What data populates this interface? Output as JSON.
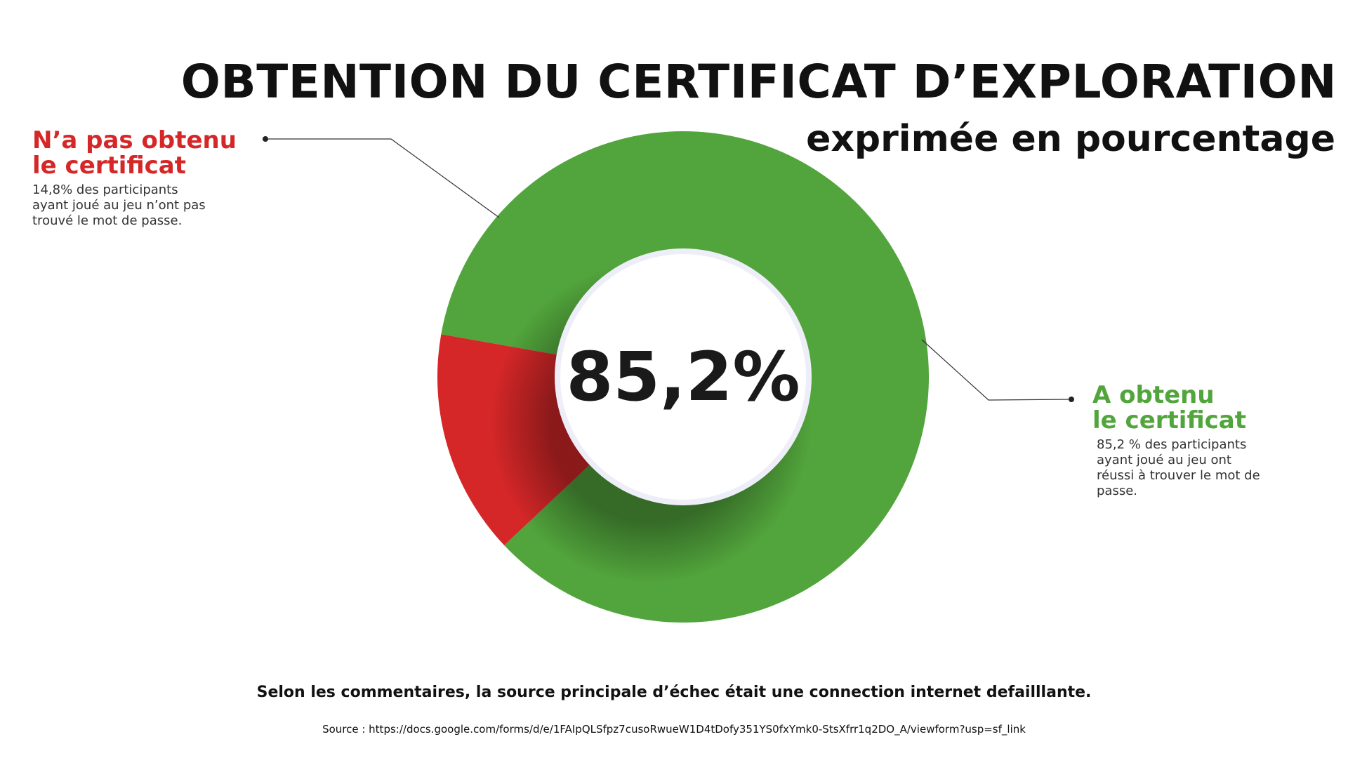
{
  "title": "OBTENTION DU CERTIFICAT D’EXPLORATION",
  "subtitle": "exprimée en pourcentage",
  "center_label": "85,2%",
  "colors": {
    "success": "#52a53c",
    "failed": "#d62728",
    "text": "#111111"
  },
  "legend": {
    "failed": {
      "heading_line1": "N’a pas obtenu",
      "heading_line2": "le certificat",
      "description": "14,8% des participants ayant joué au jeu n’ont pas trouvé le mot de passe."
    },
    "success": {
      "heading_line1": "A obtenu",
      "heading_line2": "le certificat",
      "description": "85,2 % des participants ayant joué au jeu ont réussi à trouver le mot de passe."
    }
  },
  "footnote": "Selon les commentaires, la source principale d’échec était une connection internet defailllante.",
  "source": "Source : https://docs.google.com/forms/d/e/1FAIpQLSfpz7cusoRwueW1D4tDofy351YS0fxYmk0-StsXfrr1q2DO_A/viewform?usp=sf_link",
  "chart_data": {
    "type": "pie",
    "categories": [
      "A obtenu le certificat",
      "N’a pas obtenu le certificat"
    ],
    "values": [
      85.2,
      14.8
    ],
    "colors": [
      "#52a53c",
      "#d62728"
    ],
    "donut": true,
    "title": "OBTENTION DU CERTIFICAT D’EXPLORATION",
    "subtitle": "exprimée en pourcentage"
  }
}
